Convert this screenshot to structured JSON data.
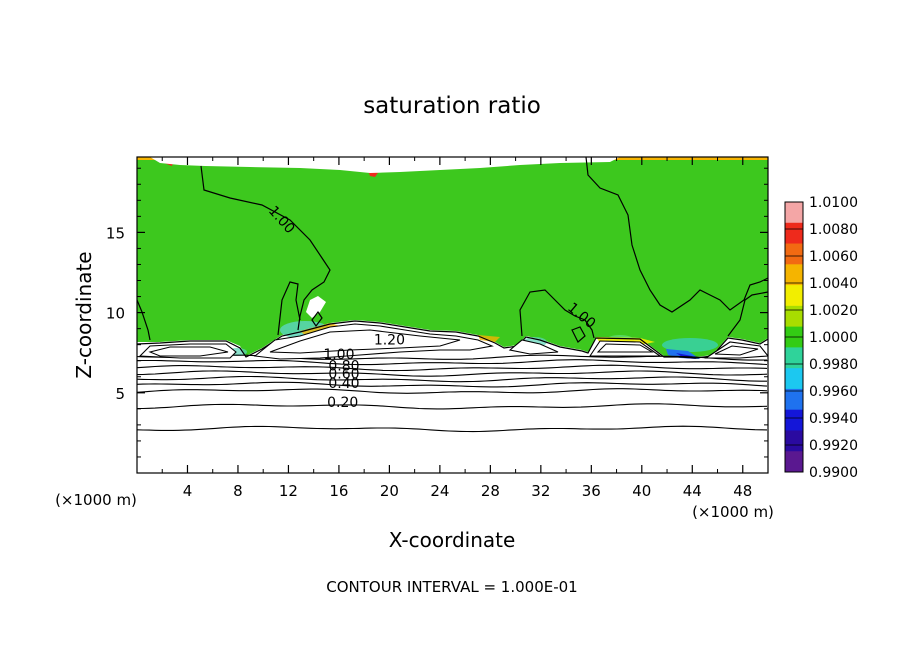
{
  "chart_data": {
    "type": "heatmap",
    "title": "saturation ratio",
    "xlabel": "X-coordinate",
    "ylabel": "Z-coordinate",
    "x_unit_label": "(×1000 m)",
    "y_unit_label": "(×1000 m)",
    "footer": "CONTOUR INTERVAL = 1.000E-01",
    "xlim": [
      0,
      50
    ],
    "ylim": [
      0,
      19.7
    ],
    "x_ticks": [
      4,
      8,
      12,
      16,
      20,
      24,
      28,
      32,
      36,
      40,
      44,
      48
    ],
    "y_ticks": [
      5,
      10,
      15
    ],
    "colorbar": {
      "ticks": [
        "1.0100",
        "1.0080",
        "1.0060",
        "1.0040",
        "1.0020",
        "1.0000",
        "0.9980",
        "0.9960",
        "0.9940",
        "0.9920",
        "0.9900"
      ],
      "colors": [
        "#f4a6a6",
        "#ee2a1c",
        "#f26a12",
        "#f5b400",
        "#f2ee00",
        "#a8dd00",
        "#33cc14",
        "#2fd39a",
        "#1cc8f0",
        "#1f72ef",
        "#1416d8",
        "#2a0aa0",
        "#5a1890"
      ]
    },
    "contour_labels": [
      {
        "text": "1.00",
        "x": 11.2,
        "y": 15.6
      },
      {
        "text": "1.00",
        "x": 35.0,
        "y": 9.6
      },
      {
        "text": "1.20",
        "x": 20.0,
        "y": 8.0
      },
      {
        "text": "1.00",
        "x": 16.0,
        "y": 7.1
      },
      {
        "text": "0.80",
        "x": 16.4,
        "y": 6.4
      },
      {
        "text": "0.60",
        "x": 16.4,
        "y": 5.9
      },
      {
        "text": "0.40",
        "x": 16.4,
        "y": 5.3
      },
      {
        "text": "0.20",
        "x": 16.3,
        "y": 4.1
      }
    ],
    "contour_levels_flat": [
      2.75,
      4.15,
      5.1,
      5.5,
      5.85,
      6.2,
      6.55,
      6.9,
      7.2
    ]
  }
}
